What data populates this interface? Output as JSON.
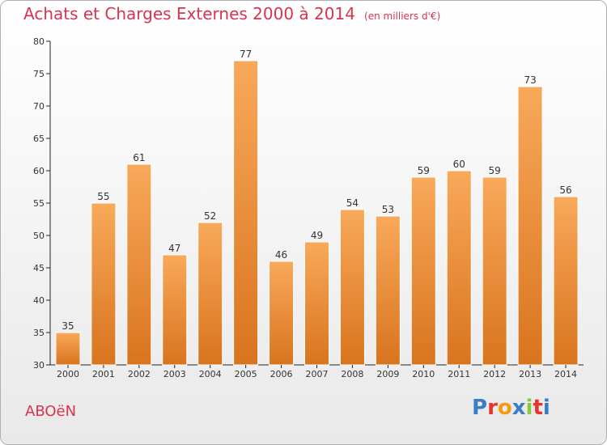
{
  "header": {
    "title": "Achats et Charges Externes 2000 à 2014",
    "unit": "(en milliers d'€)"
  },
  "footer": {
    "town": "ABOëN",
    "brand_letters": [
      "P",
      "r",
      "o",
      "x",
      "i",
      "t",
      "i"
    ],
    "brand_colors": [
      "#3b7dc4",
      "#e6342f",
      "#f39c12",
      "#3b7dc4",
      "#8dc63f",
      "#e6342f",
      "#3b7dc4"
    ]
  },
  "colors": {
    "bar_light": "#f8a95a",
    "bar_dark": "#d9741e",
    "title": "#d8334f"
  },
  "chart_data": {
    "type": "bar",
    "title": "Achats et Charges Externes 2000 à 2014",
    "categories": [
      "2000",
      "2001",
      "2002",
      "2003",
      "2004",
      "2005",
      "2006",
      "2007",
      "2008",
      "2009",
      "2010",
      "2011",
      "2012",
      "2013",
      "2014"
    ],
    "values": [
      35,
      55,
      61,
      47,
      52,
      77,
      46,
      49,
      54,
      53,
      59,
      60,
      59,
      73,
      56
    ],
    "xlabel": "",
    "ylabel": "",
    "ylim": [
      30,
      80
    ],
    "yticks": [
      30,
      35,
      40,
      45,
      50,
      55,
      60,
      65,
      70,
      75,
      80
    ],
    "grid": false,
    "legend": "none"
  }
}
